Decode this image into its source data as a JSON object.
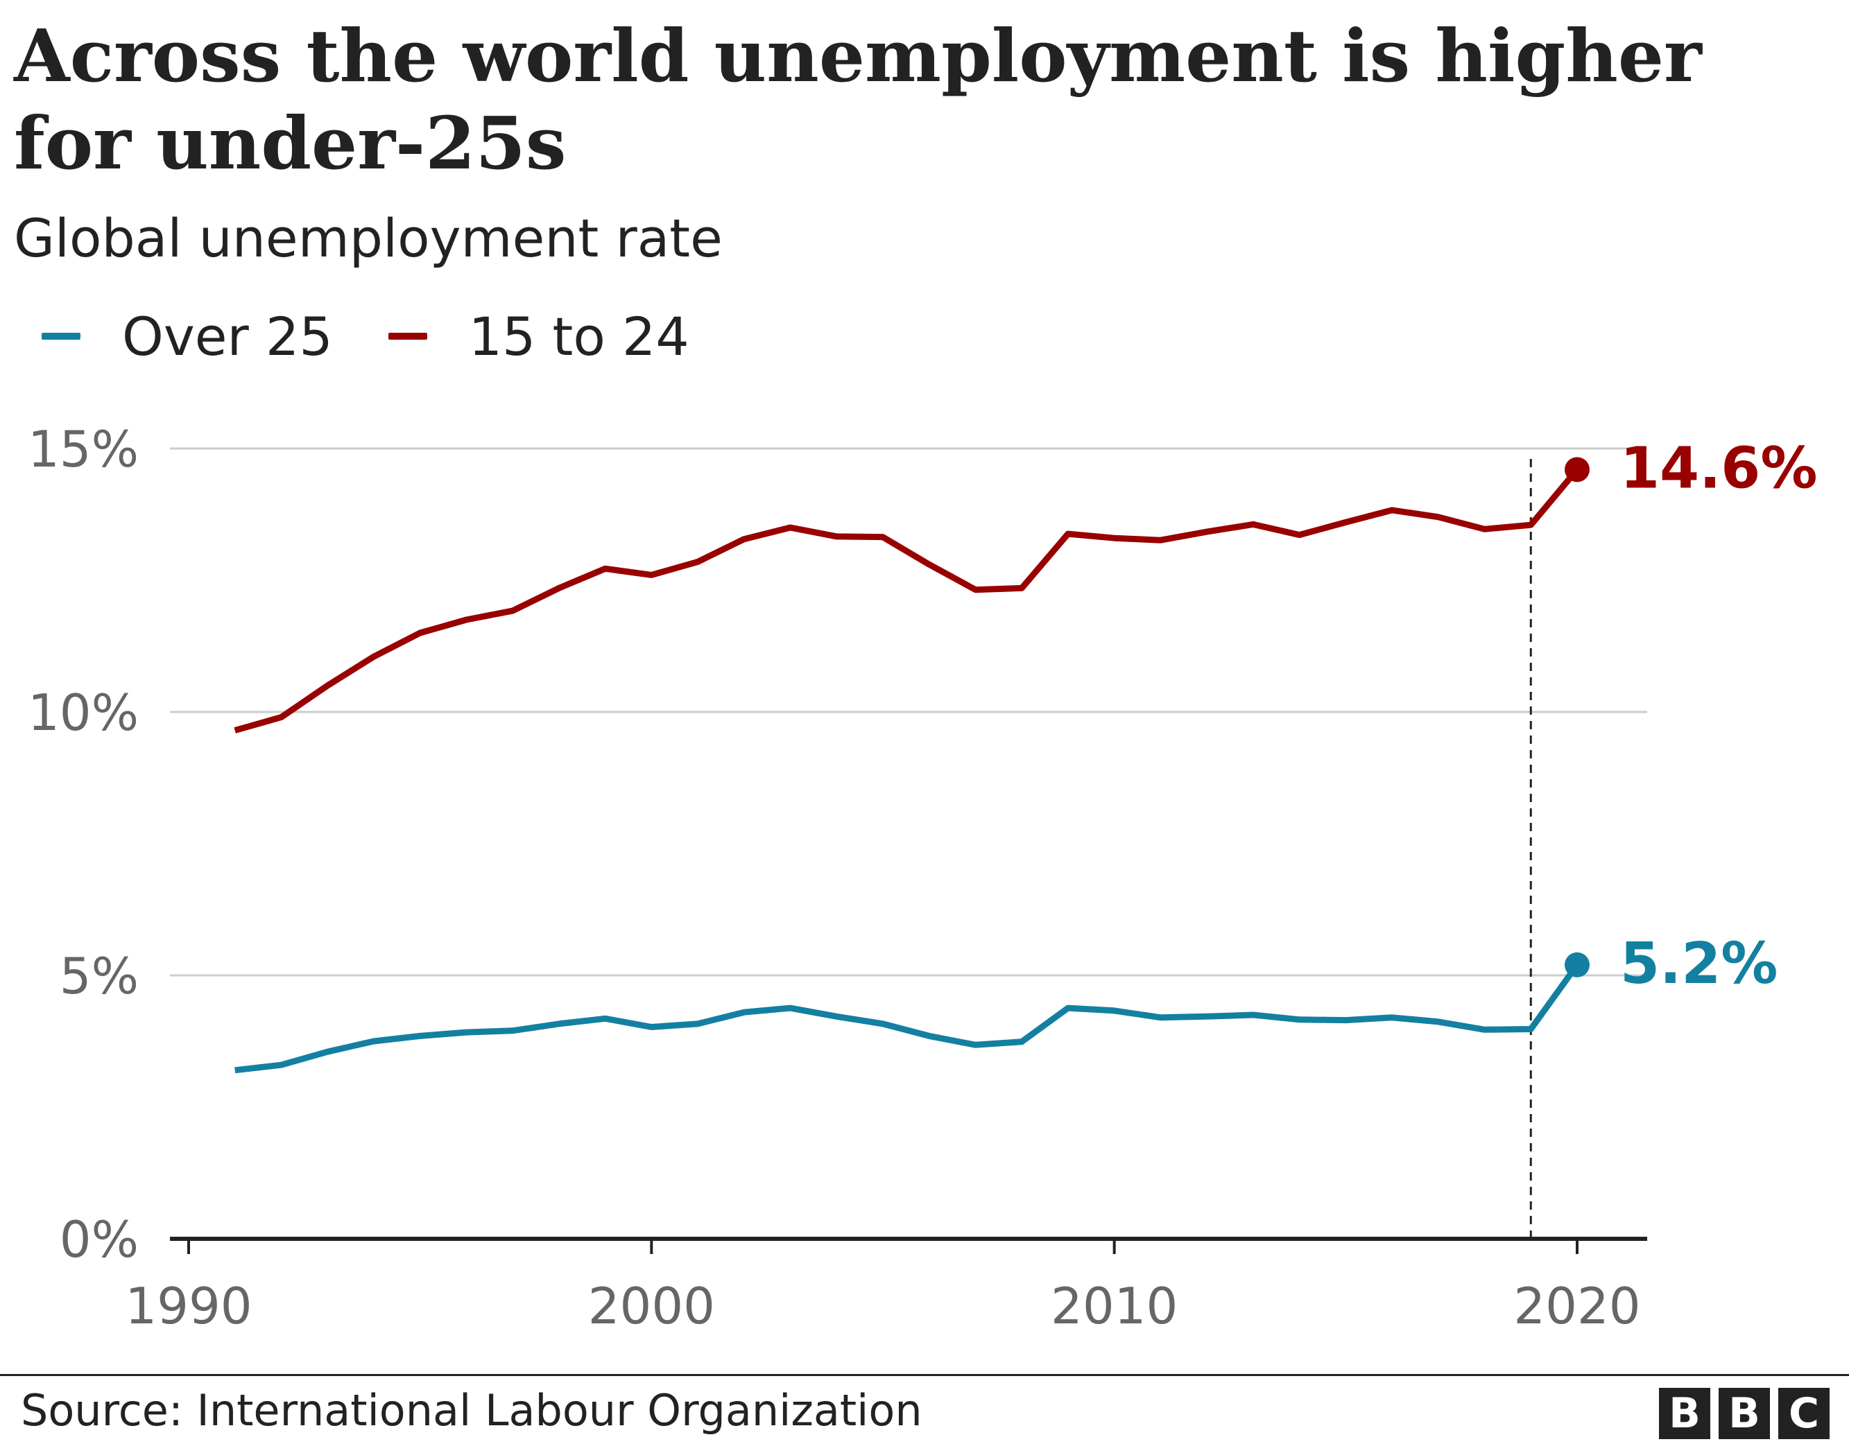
{
  "chart_data": {
    "type": "line",
    "title": "Across the world unemployment is higher for under-25s",
    "subtitle": "Global unemployment rate",
    "x": [
      1991,
      1992,
      1993,
      1994,
      1995,
      1996,
      1997,
      1998,
      1999,
      2000,
      2001,
      2002,
      2003,
      2004,
      2005,
      2006,
      2007,
      2008,
      2009,
      2010,
      2011,
      2012,
      2013,
      2014,
      2015,
      2016,
      2017,
      2018,
      2019,
      2020
    ],
    "series": [
      {
        "name": "Over 25",
        "color": "#1380A1",
        "values": [
          3.2,
          3.3,
          3.55,
          3.75,
          3.85,
          3.92,
          3.95,
          4.08,
          4.18,
          4.02,
          4.08,
          4.3,
          4.38,
          4.22,
          4.08,
          3.85,
          3.68,
          3.74,
          4.38,
          4.33,
          4.2,
          4.22,
          4.25,
          4.16,
          4.15,
          4.2,
          4.12,
          3.97,
          3.98,
          5.2
        ],
        "end_label": "5.2%"
      },
      {
        "name": "15 to 24",
        "color": "#990000",
        "values": [
          9.65,
          9.9,
          10.5,
          11.05,
          11.5,
          11.75,
          11.92,
          12.35,
          12.72,
          12.6,
          12.85,
          13.28,
          13.5,
          13.33,
          13.32,
          12.8,
          12.32,
          12.35,
          13.38,
          13.3,
          13.26,
          13.42,
          13.56,
          13.36,
          13.6,
          13.83,
          13.7,
          13.47,
          13.55,
          14.6
        ],
        "end_label": "14.6%"
      }
    ],
    "xlabel": "",
    "ylabel": "",
    "xlim": [
      1990,
      2021.5
    ],
    "ylim": [
      0,
      15
    ],
    "x_ticks": [
      {
        "value": 1990,
        "label": "1990"
      },
      {
        "value": 2000,
        "label": "2000"
      },
      {
        "value": 2010,
        "label": "2010"
      },
      {
        "value": 2020,
        "label": "2020"
      }
    ],
    "y_ticks": [
      {
        "value": 0,
        "label": "0%"
      },
      {
        "value": 5,
        "label": "5%"
      },
      {
        "value": 10,
        "label": "10%"
      },
      {
        "value": 15,
        "label": "15%"
      }
    ],
    "reference_line_x": 2019,
    "grid": true,
    "legend_position": "top-left"
  },
  "footer": {
    "source": "Source: International Labour Organization",
    "logo_letters": [
      "B",
      "B",
      "C"
    ]
  }
}
